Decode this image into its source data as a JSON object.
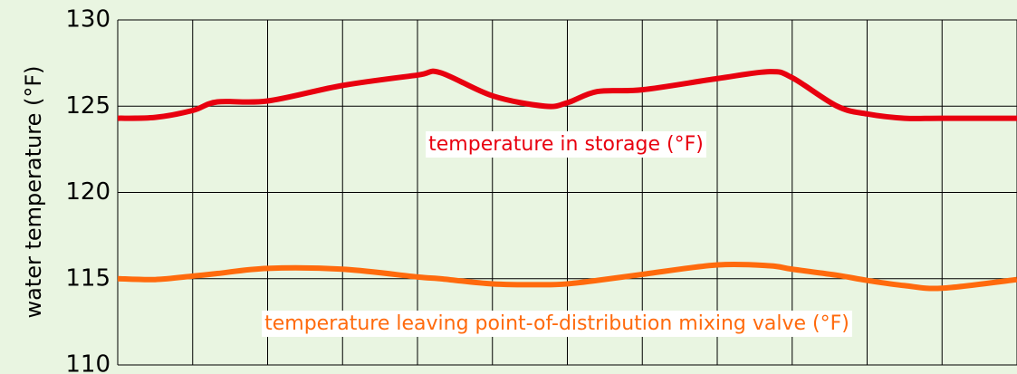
{
  "chart_data": {
    "type": "line",
    "ylabel": "water temperature (°F)",
    "xlim": [
      0,
      12
    ],
    "xticks": [
      0,
      1,
      2,
      3,
      4,
      5,
      6,
      7,
      8,
      9,
      10,
      11,
      12
    ],
    "ylim": [
      110,
      130
    ],
    "yticks": [
      110,
      115,
      120,
      125,
      130
    ],
    "grid": true,
    "x": [
      0,
      0.5,
      1,
      1.33,
      2,
      3,
      4,
      4.3,
      5,
      5.7,
      6,
      6.4,
      7,
      8,
      8.7,
      9,
      9.6,
      10,
      10.5,
      11,
      12
    ],
    "series": [
      {
        "name": "temperature in storage (°F)",
        "color": "#e8000f",
        "values": [
          124.3,
          124.35,
          124.75,
          125.25,
          125.3,
          126.2,
          126.8,
          126.95,
          125.6,
          125.0,
          125.2,
          125.85,
          125.95,
          126.6,
          127.0,
          126.65,
          125.0,
          124.55,
          124.3,
          124.3,
          124.3
        ]
      },
      {
        "name": "temperature leaving point-of-distribution mixing valve (°F)",
        "color": "#ff6a0d",
        "values": [
          115.0,
          114.95,
          115.15,
          115.3,
          115.6,
          115.55,
          115.1,
          115.0,
          114.7,
          114.65,
          114.7,
          114.9,
          115.25,
          115.8,
          115.75,
          115.55,
          115.2,
          114.9,
          114.6,
          114.45,
          114.95
        ]
      }
    ]
  }
}
